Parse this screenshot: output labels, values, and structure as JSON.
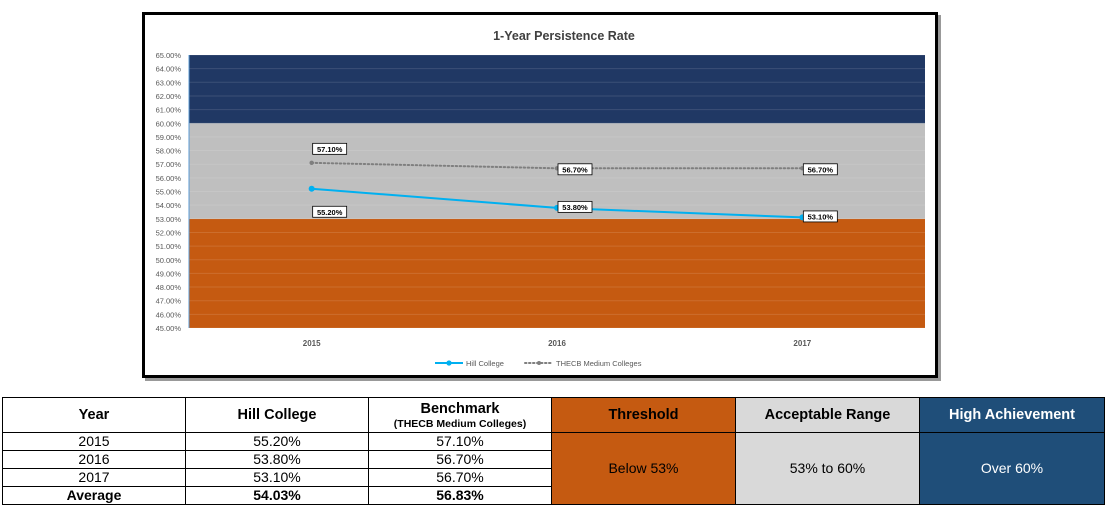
{
  "colors": {
    "threshold": "#c55a11",
    "acceptable": "#bfbfbf",
    "high": "#203864",
    "hill_line": "#00b0f0",
    "benchmark_line": "#7f7f7f"
  },
  "chart_data": {
    "type": "line",
    "title": "1-Year Persistence Rate",
    "xlabel": "",
    "ylabel": "",
    "ylim": [
      45,
      65
    ],
    "y_tick_step": 1,
    "y_tick_format": "percent_2dp",
    "categories": [
      "2015",
      "2016",
      "2017"
    ],
    "bands": [
      {
        "name": "Threshold",
        "from": 45,
        "to": 53,
        "color": "#c55a11"
      },
      {
        "name": "Acceptable Range",
        "from": 53,
        "to": 60,
        "color": "#bfbfbf"
      },
      {
        "name": "High Achievement",
        "from": 60,
        "to": 65,
        "color": "#203864"
      }
    ],
    "series": [
      {
        "name": "Hill College",
        "values": [
          55.2,
          53.8,
          53.1
        ],
        "labels": [
          "55.20%",
          "53.80%",
          "53.10%"
        ],
        "style": "solid",
        "color": "#00b0f0"
      },
      {
        "name": "THECB Medium Colleges",
        "values": [
          57.1,
          56.7,
          56.7
        ],
        "labels": [
          "57.10%",
          "56.70%",
          "56.70%"
        ],
        "style": "dotted",
        "color": "#7f7f7f"
      }
    ],
    "legend_position": "bottom"
  },
  "table": {
    "headers": {
      "year": "Year",
      "hill": "Hill College",
      "benchmark": "Benchmark",
      "benchmark_sub": "(THECB Medium Colleges)",
      "threshold": "Threshold",
      "acceptable": "Acceptable Range",
      "high": "High Achievement"
    },
    "rows": [
      {
        "year": "2015",
        "hill": "55.20%",
        "benchmark": "57.10%"
      },
      {
        "year": "2016",
        "hill": "53.80%",
        "benchmark": "56.70%"
      },
      {
        "year": "2017",
        "hill": "53.10%",
        "benchmark": "56.70%"
      }
    ],
    "average": {
      "year": "Average",
      "hill": "54.03%",
      "benchmark": "56.83%"
    },
    "bands": {
      "threshold": "Below 53%",
      "acceptable": "53% to 60%",
      "high": "Over 60%"
    }
  }
}
